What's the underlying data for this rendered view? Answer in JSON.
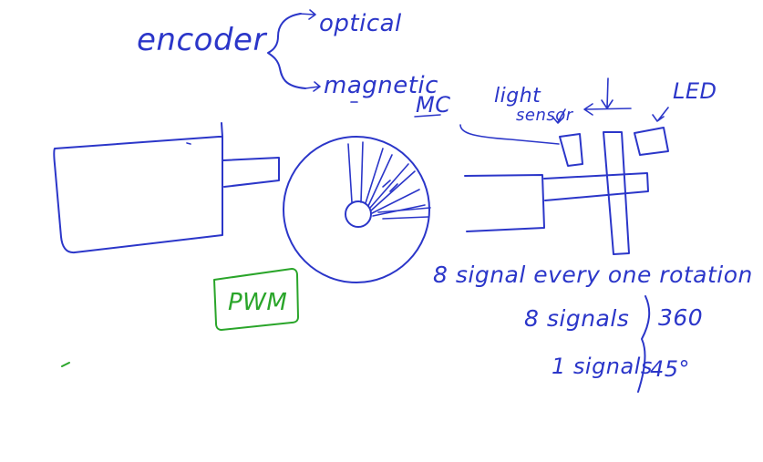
{
  "labels": {
    "encoder": "encoder",
    "optical": "optical",
    "magnetic": "magnetic",
    "mc": "MC",
    "light_sensor_line1": "light",
    "light_sensor_line2": "sensor",
    "led": "LED",
    "pwm": "PWM",
    "signal_every_rotation": "8 signal every one rotation",
    "eight_signals": "8 signals",
    "three_sixty": "360",
    "one_signal": "1 signals",
    "forty_five": "45°"
  },
  "colors": {
    "ink": "#2b36c9",
    "green_ink": "#2aa52a",
    "background": "#ffffff"
  }
}
